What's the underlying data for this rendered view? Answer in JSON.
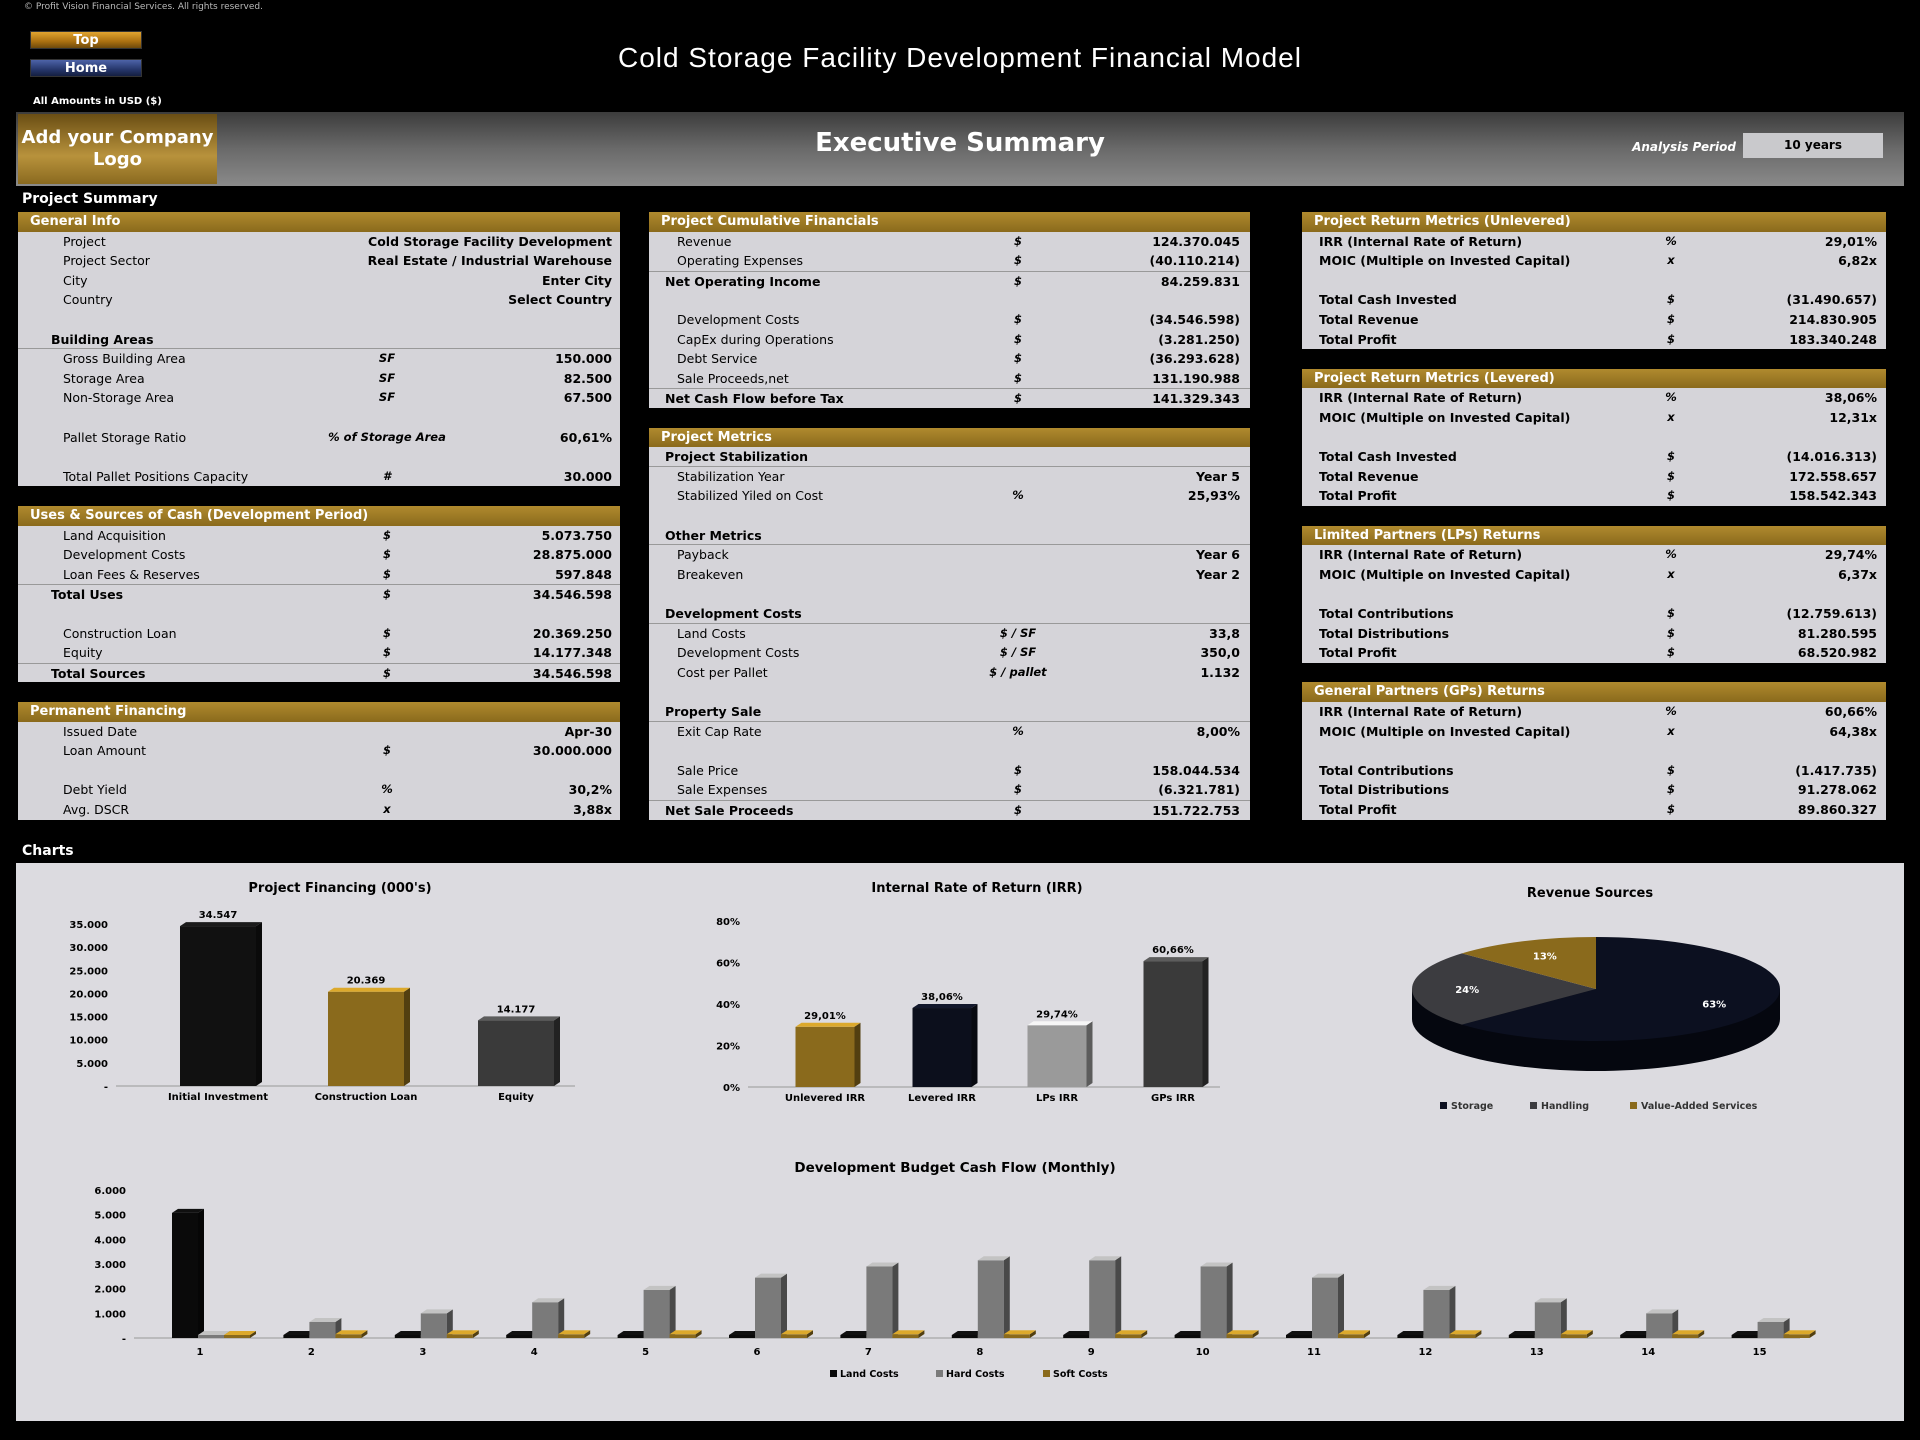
{
  "copyright": "© Profit Vision Financial Services. All rights reserved.",
  "nav": {
    "top": "Top",
    "home": "Home"
  },
  "title": "Cold Storage Facility Development Financial Model",
  "amounts": "All Amounts in  USD ($)",
  "logo": "Add your Company Logo",
  "page_title": "Executive Summary",
  "analysis_period": {
    "label": "Analysis Period",
    "value": "10 years"
  },
  "colors": {
    "gold": "#9b7a2a",
    "panel": "#d5d4d9",
    "black": "#000000"
  },
  "sections": {
    "summary": "Project Summary",
    "charts": "Charts"
  },
  "columns": [
    [
      {
        "t": "header",
        "label": "General Info"
      },
      {
        "t": "item",
        "label": "Project",
        "value": "Cold Storage Facility Development"
      },
      {
        "t": "item",
        "label": "Project Sector",
        "value": "Real Estate / Industrial Warehouse"
      },
      {
        "t": "item",
        "label": "City",
        "value": "Enter City"
      },
      {
        "t": "item",
        "label": "Country",
        "value": "Select Country"
      },
      {
        "t": "blank"
      },
      {
        "t": "sub",
        "label": "Building Areas"
      },
      {
        "t": "item",
        "label": "Gross Building Area",
        "unit": "SF",
        "value": "150.000"
      },
      {
        "t": "item",
        "label": "Storage Area",
        "unit": "SF",
        "value": "82.500"
      },
      {
        "t": "item",
        "label": "Non-Storage Area",
        "unit": "SF",
        "value": "67.500"
      },
      {
        "t": "blank"
      },
      {
        "t": "item",
        "label": "Pallet Storage Ratio",
        "unit": "% of Storage Area",
        "value": "60,61%"
      },
      {
        "t": "blank"
      },
      {
        "t": "item",
        "label": "Total Pallet Positions Capacity",
        "unit": "#",
        "value": "30.000"
      },
      {
        "t": "gap"
      },
      {
        "t": "header",
        "label": "Uses & Sources of Cash (Development Period)"
      },
      {
        "t": "item",
        "label": "Land Acquisition",
        "unit": "$",
        "value": "5.073.750"
      },
      {
        "t": "item",
        "label": "Development Costs",
        "unit": "$",
        "value": "28.875.000"
      },
      {
        "t": "item",
        "label": "Loan Fees & Reserves",
        "unit": "$",
        "value": "597.848"
      },
      {
        "t": "bold",
        "label": "Total Uses",
        "unit": "$",
        "value": "34.546.598"
      },
      {
        "t": "blank"
      },
      {
        "t": "item",
        "label": "Construction Loan",
        "unit": "$",
        "value": "20.369.250"
      },
      {
        "t": "item",
        "label": "Equity",
        "unit": "$",
        "value": "14.177.348"
      },
      {
        "t": "bold",
        "label": "Total Sources",
        "unit": "$",
        "value": "34.546.598"
      },
      {
        "t": "gap"
      },
      {
        "t": "header",
        "label": "Permanent Financing"
      },
      {
        "t": "item",
        "label": "Issued Date",
        "value": "Apr-30"
      },
      {
        "t": "item",
        "label": "Loan Amount",
        "unit": "$",
        "value": "30.000.000"
      },
      {
        "t": "blank"
      },
      {
        "t": "item",
        "label": "Debt Yield",
        "unit": "%",
        "value": "30,2%"
      },
      {
        "t": "item",
        "label": "Avg. DSCR",
        "unit": "x",
        "value": "3,88x"
      }
    ],
    [
      {
        "t": "header",
        "label": "Project Cumulative Financials"
      },
      {
        "t": "item",
        "label": "Revenue",
        "unit": "$",
        "value": "124.370.045"
      },
      {
        "t": "item",
        "label": "Operating Expenses",
        "unit": "$",
        "value": "(40.110.214)"
      },
      {
        "t": "bold",
        "label": "Net Operating Income",
        "unit": "$",
        "value": "84.259.831"
      },
      {
        "t": "blank"
      },
      {
        "t": "item",
        "label": "Development Costs",
        "unit": "$",
        "value": "(34.546.598)"
      },
      {
        "t": "item",
        "label": "CapEx during Operations",
        "unit": "$",
        "value": "(3.281.250)"
      },
      {
        "t": "item",
        "label": "Debt Service",
        "unit": "$",
        "value": "(36.293.628)"
      },
      {
        "t": "item",
        "label": "Sale Proceeds,net",
        "unit": "$",
        "value": "131.190.988"
      },
      {
        "t": "bold",
        "label": "Net Cash Flow before Tax",
        "unit": "$",
        "value": "141.329.343"
      },
      {
        "t": "gap"
      },
      {
        "t": "header",
        "label": "Project Metrics"
      },
      {
        "t": "sub",
        "label": "Project Stabilization"
      },
      {
        "t": "item",
        "label": "Stabilization Year",
        "value": "Year 5"
      },
      {
        "t": "item",
        "label": "Stabilized Yiled on Cost",
        "unit": "%",
        "value": "25,93%"
      },
      {
        "t": "blank"
      },
      {
        "t": "sub",
        "label": "Other Metrics"
      },
      {
        "t": "item",
        "label": "Payback",
        "value": "Year 6"
      },
      {
        "t": "item",
        "label": "Breakeven",
        "value": "Year 2"
      },
      {
        "t": "blank"
      },
      {
        "t": "sub",
        "label": "Development Costs"
      },
      {
        "t": "item",
        "label": "Land Costs",
        "unit": "$ / SF",
        "value": "33,8"
      },
      {
        "t": "item",
        "label": "Development Costs",
        "unit": "$ / SF",
        "value": "350,0"
      },
      {
        "t": "item",
        "label": "Cost per Pallet",
        "unit": "$ / pallet",
        "value": "1.132"
      },
      {
        "t": "blank"
      },
      {
        "t": "sub",
        "label": "Property Sale"
      },
      {
        "t": "item",
        "label": "Exit Cap Rate",
        "unit": "%",
        "value": "8,00%"
      },
      {
        "t": "blank"
      },
      {
        "t": "item",
        "label": "Sale Price",
        "unit": "$",
        "value": "158.044.534"
      },
      {
        "t": "item",
        "label": "Sale Expenses",
        "unit": "$",
        "value": "(6.321.781)"
      },
      {
        "t": "bold",
        "label": "Net Sale Proceeds",
        "unit": "$",
        "value": "151.722.753"
      }
    ],
    [
      {
        "t": "header",
        "label": "Project Return Metrics (Unlevered)"
      },
      {
        "t": "item",
        "label": "IRR (Internal Rate of Return)",
        "unit": "%",
        "value": "29,01%"
      },
      {
        "t": "item",
        "label": "MOIC (Multiple on Invested Capital)",
        "unit": "x",
        "value": "6,82x"
      },
      {
        "t": "blank"
      },
      {
        "t": "item",
        "label": "Total Cash Invested",
        "unit": "$",
        "value": "(31.490.657)"
      },
      {
        "t": "item",
        "label": "Total Revenue",
        "unit": "$",
        "value": "214.830.905"
      },
      {
        "t": "item",
        "label": "Total Profit",
        "unit": "$",
        "value": "183.340.248"
      },
      {
        "t": "gap"
      },
      {
        "t": "header",
        "label": "Project Return Metrics (Levered)"
      },
      {
        "t": "item",
        "label": "IRR (Internal Rate of Return)",
        "unit": "%",
        "value": "38,06%"
      },
      {
        "t": "item",
        "label": "MOIC (Multiple on Invested Capital)",
        "unit": "x",
        "value": "12,31x"
      },
      {
        "t": "blank"
      },
      {
        "t": "item",
        "label": "Total Cash Invested",
        "unit": "$",
        "value": "(14.016.313)"
      },
      {
        "t": "item",
        "label": "Total Revenue",
        "unit": "$",
        "value": "172.558.657"
      },
      {
        "t": "item",
        "label": "Total Profit",
        "unit": "$",
        "value": "158.542.343"
      },
      {
        "t": "gap"
      },
      {
        "t": "header",
        "label": "Limited Partners (LPs) Returns"
      },
      {
        "t": "item",
        "label": "IRR (Internal Rate of Return)",
        "unit": "%",
        "value": "29,74%"
      },
      {
        "t": "item",
        "label": "MOIC (Multiple on Invested Capital)",
        "unit": "x",
        "value": "6,37x"
      },
      {
        "t": "blank"
      },
      {
        "t": "item",
        "label": "Total Contributions",
        "unit": "$",
        "value": "(12.759.613)"
      },
      {
        "t": "item",
        "label": "Total Distributions",
        "unit": "$",
        "value": "81.280.595"
      },
      {
        "t": "item",
        "label": "Total Profit",
        "unit": "$",
        "value": "68.520.982"
      },
      {
        "t": "gap"
      },
      {
        "t": "header",
        "label": "General Partners (GPs) Returns"
      },
      {
        "t": "item",
        "label": "IRR (Internal Rate of Return)",
        "unit": "%",
        "value": "60,66%"
      },
      {
        "t": "item",
        "label": "MOIC (Multiple on Invested Capital)",
        "unit": "x",
        "value": "64,38x"
      },
      {
        "t": "blank"
      },
      {
        "t": "item",
        "label": "Total Contributions",
        "unit": "$",
        "value": "(1.417.735)"
      },
      {
        "t": "item",
        "label": "Total Distributions",
        "unit": "$",
        "value": "91.278.062"
      },
      {
        "t": "item",
        "label": "Total Profit",
        "unit": "$",
        "value": "89.860.327"
      }
    ]
  ],
  "chart_data": [
    {
      "type": "bar",
      "title": "Project Financing (000's)",
      "categories": [
        "Initial Investment",
        "Construction Loan",
        "Equity"
      ],
      "values": [
        34547,
        20369,
        14177
      ],
      "labels": [
        "34.547",
        "20.369",
        "14.177"
      ],
      "ylim": [
        0,
        35000
      ],
      "yticks": [
        "-",
        "5.000",
        "10.000",
        "15.000",
        "20.000",
        "25.000",
        "30.000",
        "35.000"
      ],
      "colors": [
        "#111111",
        "#8a6a1c",
        "#3a3a3a"
      ]
    },
    {
      "type": "bar",
      "title": "Internal Rate of Return (IRR)",
      "categories": [
        "Unlevered IRR",
        "Levered IRR",
        "LPs IRR",
        "GPs IRR"
      ],
      "values": [
        29.01,
        38.06,
        29.74,
        60.66
      ],
      "labels": [
        "29,01%",
        "38,06%",
        "29,74%",
        "60,66%"
      ],
      "ylim": [
        0,
        80
      ],
      "yticks": [
        "0%",
        "20%",
        "40%",
        "60%",
        "80%"
      ],
      "colors": [
        "#8a6a1c",
        "#0c0f1c",
        "#9a9a9a",
        "#3a3a3a"
      ]
    },
    {
      "type": "pie",
      "title": "Revenue Sources",
      "categories": [
        "Storage",
        "Handling",
        "Value-Added Services"
      ],
      "values": [
        63,
        24,
        13
      ],
      "labels": [
        "63%",
        "24%",
        "13%"
      ],
      "colors": [
        "#0c1020",
        "#3c3c40",
        "#8a6a1c"
      ],
      "legend": "bottom"
    },
    {
      "type": "bar",
      "title": "Development Budget Cash Flow (Monthly)",
      "categories": [
        "1",
        "2",
        "3",
        "4",
        "5",
        "6",
        "7",
        "8",
        "9",
        "10",
        "11",
        "12",
        "13",
        "14",
        "15"
      ],
      "ylim": [
        0,
        6000
      ],
      "yticks": [
        "-",
        "1.000",
        "2.000",
        "3.000",
        "4.000",
        "5.000",
        "6.000"
      ],
      "legend": "bottom",
      "series": [
        {
          "name": "Land Costs",
          "color": "#0a0a0a",
          "values": [
            5074,
            0,
            0,
            0,
            0,
            0,
            0,
            0,
            0,
            0,
            0,
            0,
            0,
            0,
            0
          ]
        },
        {
          "name": "Hard Costs",
          "color": "#7a7a7a",
          "values": [
            0,
            650,
            1000,
            1450,
            1950,
            2450,
            2900,
            3150,
            3150,
            2900,
            2450,
            1950,
            1450,
            1000,
            650
          ]
        },
        {
          "name": "Soft Costs",
          "color": "#8a6a1c",
          "values": [
            0,
            150,
            150,
            150,
            150,
            150,
            150,
            150,
            150,
            150,
            150,
            150,
            150,
            150,
            150
          ]
        }
      ]
    }
  ]
}
